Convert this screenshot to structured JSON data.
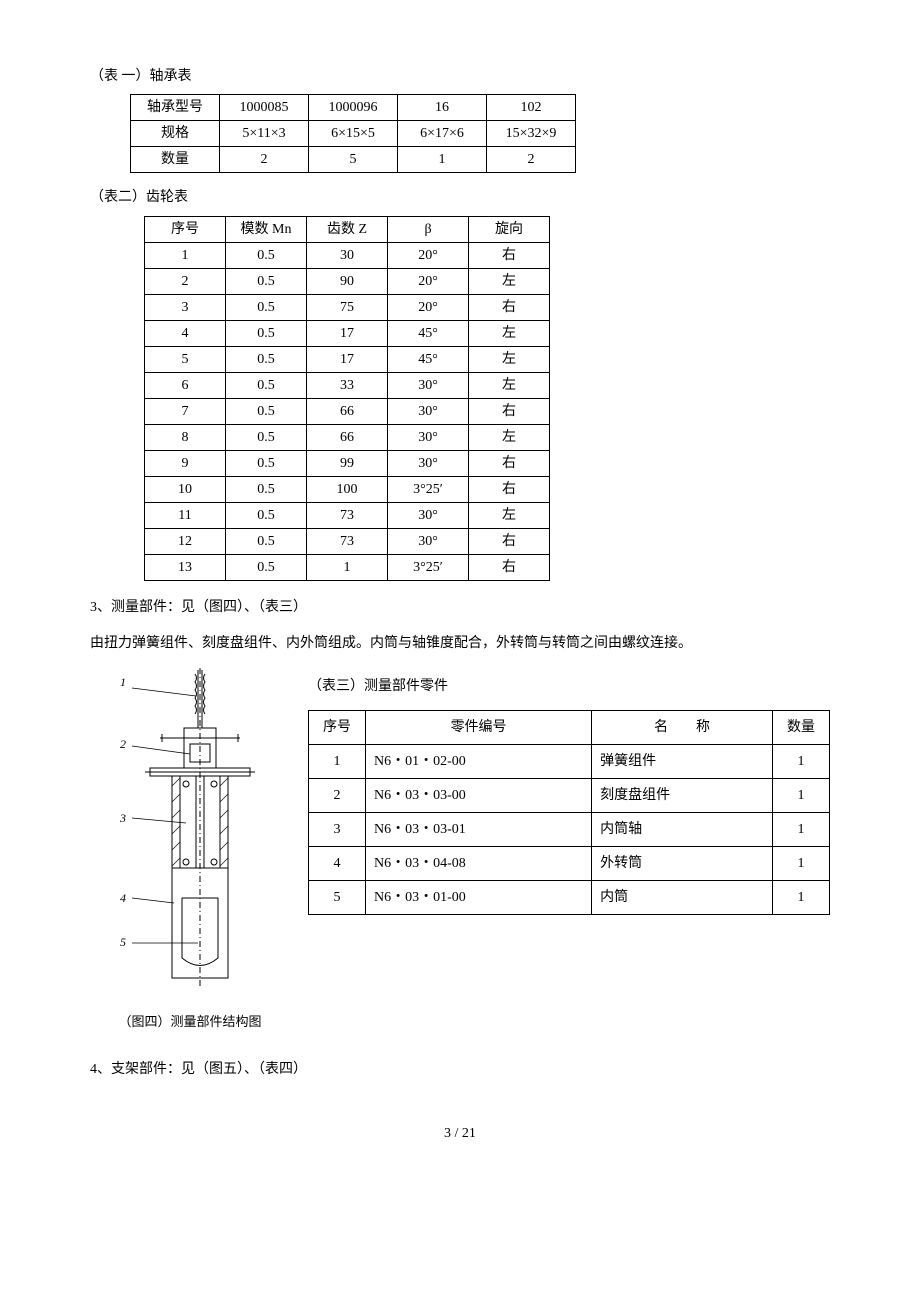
{
  "table1": {
    "title": "（表 一）轴承表",
    "rows": [
      [
        "轴承型号",
        "1000085",
        "1000096",
        "16",
        "102"
      ],
      [
        "规格",
        "5×11×3",
        "6×15×5",
        "6×17×6",
        "15×32×9"
      ],
      [
        "数量",
        "2",
        "5",
        "1",
        "2"
      ]
    ]
  },
  "table2": {
    "title": "（表二）齿轮表",
    "headers": [
      "序号",
      "模数 Mn",
      "齿数 Z",
      "β",
      "旋向"
    ],
    "rows": [
      [
        "1",
        "0.5",
        "30",
        "20°",
        "右"
      ],
      [
        "2",
        "0.5",
        "90",
        "20°",
        "左"
      ],
      [
        "3",
        "0.5",
        "75",
        "20°",
        "右"
      ],
      [
        "4",
        "0.5",
        "17",
        "45°",
        "左"
      ],
      [
        "5",
        "0.5",
        "17",
        "45°",
        "左"
      ],
      [
        "6",
        "0.5",
        "33",
        "30°",
        "左"
      ],
      [
        "7",
        "0.5",
        "66",
        "30°",
        "右"
      ],
      [
        "8",
        "0.5",
        "66",
        "30°",
        "左"
      ],
      [
        "9",
        "0.5",
        "99",
        "30°",
        "右"
      ],
      [
        "10",
        "0.5",
        "100",
        "3°25′",
        "右"
      ],
      [
        "11",
        "0.5",
        "73",
        "30°",
        "左"
      ],
      [
        "12",
        "0.5",
        "73",
        "30°",
        "右"
      ],
      [
        "13",
        "0.5",
        "1",
        "3°25′",
        "右"
      ]
    ]
  },
  "section3": {
    "heading": "3、测量部件：见（图四）、（表三）",
    "body": "由扭力弹簧组件、刻度盘组件、内外筒组成。内筒与轴锥度配合，外转筒与转筒之间由螺纹连接。"
  },
  "figure4": {
    "caption": "（图四）测量部件结构图",
    "labels": [
      "1",
      "2",
      "3",
      "4",
      "5"
    ]
  },
  "table3": {
    "title": "（表三）测量部件零件",
    "headers": [
      "序号",
      "零件编号",
      "名　　称",
      "数量"
    ],
    "rows": [
      [
        "1",
        "N6・01・02-00",
        "弹簧组件",
        "1"
      ],
      [
        "2",
        "N6・03・03-00",
        "刻度盘组件",
        "1"
      ],
      [
        "3",
        "N6・03・03-01",
        "内筒轴",
        "1"
      ],
      [
        "4",
        "N6・03・04-08",
        "外转筒",
        "1"
      ],
      [
        "5",
        "N6・03・01-00",
        "内筒",
        "1"
      ]
    ]
  },
  "section4": {
    "heading": "4、支架部件：见（图五）、（表四）"
  },
  "pageNumber": "3 / 21"
}
